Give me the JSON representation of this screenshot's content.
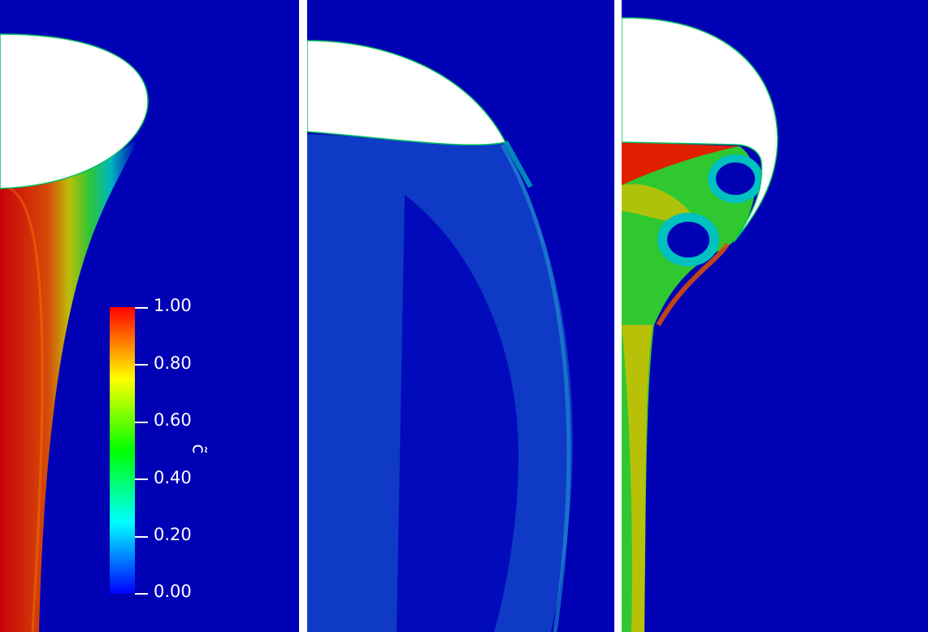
{
  "colorbar": {
    "title": "c̃",
    "ticks": [
      "1.00",
      "0.80",
      "0.60",
      "0.40",
      "0.20",
      "0.00"
    ],
    "colormap": [
      "#0000ff",
      "#00ffff",
      "#00ff00",
      "#ffff00",
      "#ff0000"
    ]
  },
  "colors": {
    "background": "#0000b4",
    "bubble": "#ffffff",
    "separator": "#ffffff"
  }
}
